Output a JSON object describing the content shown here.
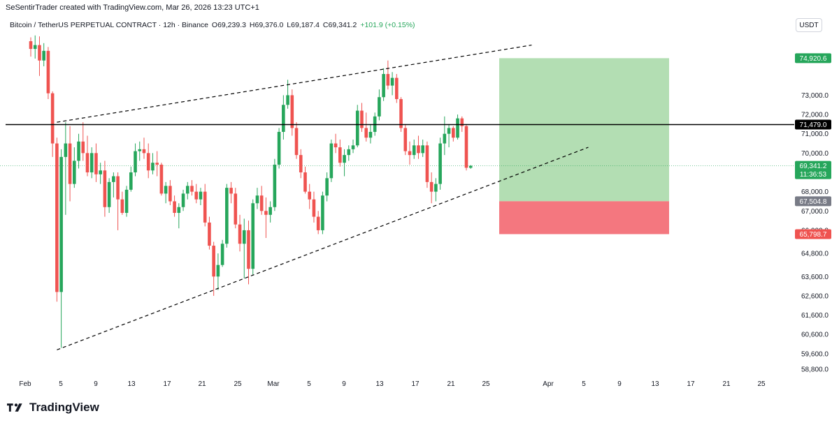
{
  "header": {
    "attribution": "SeSentirTrader created with TradingView.com, Mar 26, 2026 13:23 UTC+1"
  },
  "symbol": {
    "name": "Bitcoin / TetherUS PERPETUAL CONTRACT · 12h · Binance",
    "open": "O69,239.3",
    "high": "H69,376.0",
    "low": "L69,187.4",
    "close": "C69,341.2",
    "change": "+101.9 (+0.15%)"
  },
  "currency": "USDT",
  "brand": {
    "name": "TradingView"
  },
  "colors": {
    "up": "#26a65b",
    "down": "#ef5350",
    "target_zone": "#b3deb3",
    "stop_zone": "#f4777f",
    "line_dark": "#000000"
  },
  "chart_data": {
    "type": "candlestick",
    "timeframe": "12h",
    "y_axis": {
      "ylim": [
        58400,
        76200
      ],
      "ticks": [
        "73,000.0",
        "72,000.0",
        "71,000.0",
        "70,000.0",
        "68,000.0",
        "67,000.0",
        "66,000.0",
        "64,800.0",
        "63,600.0",
        "62,600.0",
        "61,600.0",
        "60,600.0",
        "59,600.0",
        "58,800.0"
      ]
    },
    "x_axis": {
      "ticks": [
        "Feb",
        "5",
        "9",
        "13",
        "17",
        "21",
        "25",
        "Mar",
        "5",
        "9",
        "13",
        "17",
        "21",
        "25",
        "Apr",
        "5",
        "9",
        "13",
        "17",
        "21",
        "25"
      ]
    },
    "candles": [
      {
        "o": 75800,
        "h": 76000,
        "l": 75000,
        "c": 75400
      },
      {
        "o": 75400,
        "h": 76100,
        "l": 74900,
        "c": 75600
      },
      {
        "o": 75600,
        "h": 76050,
        "l": 74000,
        "c": 74800
      },
      {
        "o": 74800,
        "h": 75700,
        "l": 74500,
        "c": 75300
      },
      {
        "o": 75300,
        "h": 75500,
        "l": 72800,
        "c": 73100
      },
      {
        "o": 73100,
        "h": 73200,
        "l": 69800,
        "c": 70500
      },
      {
        "o": 70500,
        "h": 70800,
        "l": 62300,
        "c": 62800
      },
      {
        "o": 62800,
        "h": 70200,
        "l": 59900,
        "c": 69800
      },
      {
        "o": 69800,
        "h": 71600,
        "l": 66800,
        "c": 70500
      },
      {
        "o": 70500,
        "h": 71400,
        "l": 67500,
        "c": 68400
      },
      {
        "o": 68400,
        "h": 70300,
        "l": 68200,
        "c": 69600
      },
      {
        "o": 69600,
        "h": 71000,
        "l": 69200,
        "c": 70600
      },
      {
        "o": 70600,
        "h": 71600,
        "l": 69600,
        "c": 70000
      },
      {
        "o": 70000,
        "h": 70900,
        "l": 68800,
        "c": 69000
      },
      {
        "o": 69000,
        "h": 70300,
        "l": 68700,
        "c": 70000
      },
      {
        "o": 70000,
        "h": 70500,
        "l": 68500,
        "c": 68900
      },
      {
        "o": 68900,
        "h": 69500,
        "l": 68400,
        "c": 69100
      },
      {
        "o": 69100,
        "h": 69600,
        "l": 66700,
        "c": 67200
      },
      {
        "o": 67200,
        "h": 68700,
        "l": 66900,
        "c": 68500
      },
      {
        "o": 68500,
        "h": 69000,
        "l": 67700,
        "c": 68800
      },
      {
        "o": 68800,
        "h": 69000,
        "l": 66000,
        "c": 67600
      },
      {
        "o": 67600,
        "h": 68000,
        "l": 66800,
        "c": 66900
      },
      {
        "o": 66900,
        "h": 68300,
        "l": 66700,
        "c": 68100
      },
      {
        "o": 68100,
        "h": 69300,
        "l": 68000,
        "c": 69000
      },
      {
        "o": 69000,
        "h": 70500,
        "l": 68800,
        "c": 70100
      },
      {
        "o": 70100,
        "h": 70600,
        "l": 69600,
        "c": 70200
      },
      {
        "o": 70200,
        "h": 70800,
        "l": 69700,
        "c": 70000
      },
      {
        "o": 70000,
        "h": 70500,
        "l": 68700,
        "c": 69100
      },
      {
        "o": 69100,
        "h": 70000,
        "l": 68900,
        "c": 69500
      },
      {
        "o": 69500,
        "h": 70100,
        "l": 68800,
        "c": 69400
      },
      {
        "o": 69400,
        "h": 69500,
        "l": 67800,
        "c": 67900
      },
      {
        "o": 67900,
        "h": 68500,
        "l": 67400,
        "c": 68300
      },
      {
        "o": 68300,
        "h": 68600,
        "l": 67300,
        "c": 67500
      },
      {
        "o": 67500,
        "h": 67800,
        "l": 66700,
        "c": 66900
      },
      {
        "o": 66900,
        "h": 67400,
        "l": 66100,
        "c": 67200
      },
      {
        "o": 67200,
        "h": 68100,
        "l": 67000,
        "c": 67900
      },
      {
        "o": 67900,
        "h": 68500,
        "l": 67600,
        "c": 68300
      },
      {
        "o": 68300,
        "h": 68600,
        "l": 67800,
        "c": 68000
      },
      {
        "o": 68000,
        "h": 68400,
        "l": 67400,
        "c": 67600
      },
      {
        "o": 67600,
        "h": 68200,
        "l": 67300,
        "c": 68000
      },
      {
        "o": 68000,
        "h": 68400,
        "l": 66200,
        "c": 66400
      },
      {
        "o": 66400,
        "h": 66700,
        "l": 65000,
        "c": 65200
      },
      {
        "o": 65200,
        "h": 65400,
        "l": 62600,
        "c": 63600
      },
      {
        "o": 63600,
        "h": 64800,
        "l": 62900,
        "c": 64200
      },
      {
        "o": 64200,
        "h": 65500,
        "l": 64100,
        "c": 65300
      },
      {
        "o": 65300,
        "h": 68400,
        "l": 65100,
        "c": 68200
      },
      {
        "o": 68200,
        "h": 68500,
        "l": 67400,
        "c": 67900
      },
      {
        "o": 67900,
        "h": 68200,
        "l": 66100,
        "c": 66300
      },
      {
        "o": 66300,
        "h": 66800,
        "l": 64900,
        "c": 65300
      },
      {
        "o": 65300,
        "h": 66600,
        "l": 63500,
        "c": 66000
      },
      {
        "o": 66000,
        "h": 66500,
        "l": 63200,
        "c": 64000
      },
      {
        "o": 64000,
        "h": 67600,
        "l": 63700,
        "c": 67400
      },
      {
        "o": 67400,
        "h": 68200,
        "l": 67100,
        "c": 67800
      },
      {
        "o": 67800,
        "h": 68300,
        "l": 66800,
        "c": 67000
      },
      {
        "o": 67000,
        "h": 67700,
        "l": 65600,
        "c": 66800
      },
      {
        "o": 66800,
        "h": 67500,
        "l": 66400,
        "c": 67200
      },
      {
        "o": 67200,
        "h": 69700,
        "l": 67000,
        "c": 69400
      },
      {
        "o": 69400,
        "h": 71300,
        "l": 69200,
        "c": 71100
      },
      {
        "o": 71100,
        "h": 73000,
        "l": 70700,
        "c": 72500
      },
      {
        "o": 72500,
        "h": 73800,
        "l": 72300,
        "c": 73000
      },
      {
        "o": 73000,
        "h": 73300,
        "l": 70900,
        "c": 71300
      },
      {
        "o": 71300,
        "h": 71600,
        "l": 69700,
        "c": 69900
      },
      {
        "o": 69900,
        "h": 70200,
        "l": 68700,
        "c": 69000
      },
      {
        "o": 69000,
        "h": 69300,
        "l": 67900,
        "c": 68000
      },
      {
        "o": 68000,
        "h": 68400,
        "l": 67100,
        "c": 67600
      },
      {
        "o": 67600,
        "h": 68000,
        "l": 66400,
        "c": 66700
      },
      {
        "o": 66700,
        "h": 67000,
        "l": 65800,
        "c": 66000
      },
      {
        "o": 66000,
        "h": 68000,
        "l": 65800,
        "c": 67800
      },
      {
        "o": 67800,
        "h": 69000,
        "l": 67500,
        "c": 68700
      },
      {
        "o": 68700,
        "h": 70700,
        "l": 68500,
        "c": 70500
      },
      {
        "o": 70500,
        "h": 71000,
        "l": 70000,
        "c": 70300
      },
      {
        "o": 70300,
        "h": 70700,
        "l": 69300,
        "c": 69500
      },
      {
        "o": 69500,
        "h": 70200,
        "l": 68800,
        "c": 69900
      },
      {
        "o": 69900,
        "h": 70400,
        "l": 69600,
        "c": 70200
      },
      {
        "o": 70200,
        "h": 70700,
        "l": 70000,
        "c": 70400
      },
      {
        "o": 70400,
        "h": 72500,
        "l": 70300,
        "c": 72200
      },
      {
        "o": 72200,
        "h": 72600,
        "l": 71100,
        "c": 71300
      },
      {
        "o": 71300,
        "h": 72100,
        "l": 70600,
        "c": 70800
      },
      {
        "o": 70800,
        "h": 71500,
        "l": 70500,
        "c": 71100
      },
      {
        "o": 71100,
        "h": 72100,
        "l": 70900,
        "c": 71900
      },
      {
        "o": 71900,
        "h": 73300,
        "l": 71700,
        "c": 72900
      },
      {
        "o": 72900,
        "h": 74400,
        "l": 72700,
        "c": 74100
      },
      {
        "o": 74100,
        "h": 74800,
        "l": 73300,
        "c": 73500
      },
      {
        "o": 73500,
        "h": 74200,
        "l": 73000,
        "c": 73900
      },
      {
        "o": 73900,
        "h": 74100,
        "l": 72600,
        "c": 72800
      },
      {
        "o": 72800,
        "h": 72900,
        "l": 71100,
        "c": 71300
      },
      {
        "o": 71300,
        "h": 71500,
        "l": 69900,
        "c": 70100
      },
      {
        "o": 70100,
        "h": 70600,
        "l": 69400,
        "c": 69900
      },
      {
        "o": 69900,
        "h": 70700,
        "l": 69700,
        "c": 70400
      },
      {
        "o": 70400,
        "h": 70900,
        "l": 69700,
        "c": 70000
      },
      {
        "o": 70000,
        "h": 70700,
        "l": 69800,
        "c": 70400
      },
      {
        "o": 70400,
        "h": 70600,
        "l": 68200,
        "c": 68500
      },
      {
        "o": 68500,
        "h": 69000,
        "l": 67400,
        "c": 68000
      },
      {
        "o": 68000,
        "h": 68700,
        "l": 67500,
        "c": 68400
      },
      {
        "o": 68400,
        "h": 70800,
        "l": 68100,
        "c": 70500
      },
      {
        "o": 70500,
        "h": 71900,
        "l": 69900,
        "c": 71000
      },
      {
        "o": 71000,
        "h": 71500,
        "l": 70300,
        "c": 71300
      },
      {
        "o": 71300,
        "h": 71400,
        "l": 70600,
        "c": 70800
      },
      {
        "o": 70800,
        "h": 72000,
        "l": 70700,
        "c": 71800
      },
      {
        "o": 71800,
        "h": 71900,
        "l": 71100,
        "c": 71400
      },
      {
        "o": 71400,
        "h": 71500,
        "l": 69100,
        "c": 69239
      },
      {
        "o": 69239,
        "h": 69376,
        "l": 69187,
        "c": 69341
      }
    ],
    "horizontal_line": {
      "price": 71479.0,
      "label": "71,479.0"
    },
    "trendlines": [
      {
        "name": "upper",
        "from": [
          6,
          71600
        ],
        "to": [
          115,
          75600
        ]
      },
      {
        "name": "lower",
        "from": [
          6,
          59800
        ],
        "to": [
          128,
          70300
        ]
      }
    ],
    "position": {
      "entry": 67504.8,
      "target": 74920.6,
      "stop": 65798.7,
      "start_index": 102,
      "end_index": 125
    },
    "price_tags": [
      {
        "price": 74920.6,
        "label": "74,920.6",
        "kind": "target"
      },
      {
        "price": 71479.0,
        "label": "71,479.0",
        "kind": "line"
      },
      {
        "price": 69341.2,
        "label": "69,341.2",
        "sub": "11:36:53",
        "kind": "last"
      },
      {
        "price": 67504.8,
        "label": "67,504.8",
        "kind": "entry"
      },
      {
        "price": 65798.7,
        "label": "65,798.7",
        "kind": "stop"
      }
    ]
  }
}
